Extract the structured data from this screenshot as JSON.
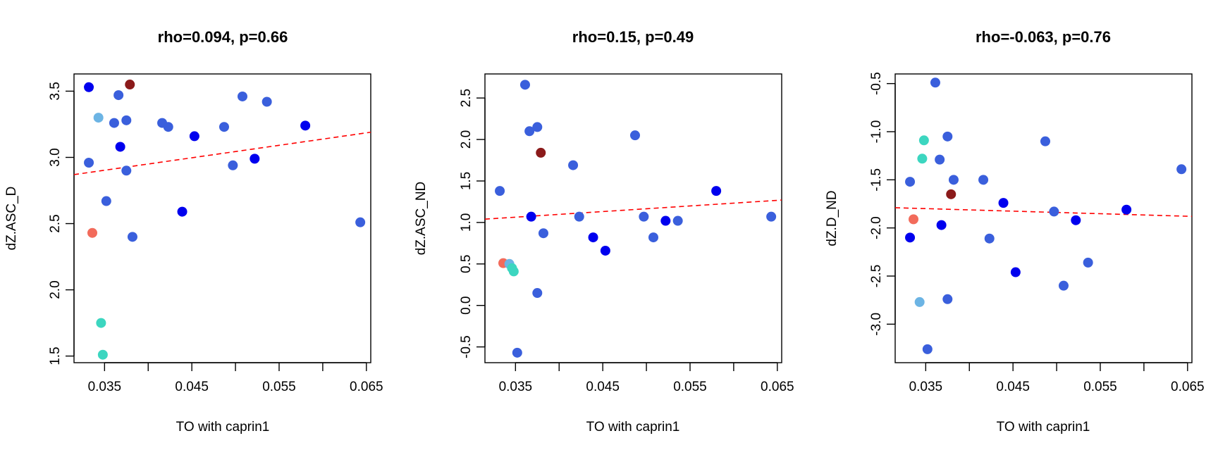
{
  "chart_data": [
    {
      "type": "scatter",
      "title": "rho=0.094, p=0.66",
      "xlabel": "TO with caprin1",
      "ylabel": "dZ.ASC_D",
      "xlim": [
        0.0315,
        0.0655
      ],
      "ylim": [
        1.45,
        3.63
      ],
      "xticks": [
        {
          "value": 0.035,
          "label": "0.035"
        },
        {
          "value": 0.04,
          "label": ""
        },
        {
          "value": 0.045,
          "label": "0.045"
        },
        {
          "value": 0.05,
          "label": ""
        },
        {
          "value": 0.055,
          "label": "0.055"
        },
        {
          "value": 0.06,
          "label": ""
        },
        {
          "value": 0.065,
          "label": "0.065"
        }
      ],
      "yticks": [
        {
          "value": 1.5,
          "label": "1.5"
        },
        {
          "value": 2.0,
          "label": "2.0"
        },
        {
          "value": 2.5,
          "label": "2.5"
        },
        {
          "value": 3.0,
          "label": "3.0"
        },
        {
          "value": 3.5,
          "label": "3.5"
        }
      ],
      "regression": {
        "x": [
          0.0315,
          0.0655
        ],
        "y": [
          2.87,
          3.19
        ],
        "color": "#ff0000",
        "style": "dashed"
      },
      "points": [
        {
          "x": 0.0332,
          "y": 3.53,
          "color": "#0000ee"
        },
        {
          "x": 0.0379,
          "y": 3.55,
          "color": "#8b1a1a"
        },
        {
          "x": 0.0343,
          "y": 3.3,
          "color": "#6cb4e4"
        },
        {
          "x": 0.0366,
          "y": 3.47,
          "color": "#3a5fdc"
        },
        {
          "x": 0.0361,
          "y": 3.26,
          "color": "#3a5fdc"
        },
        {
          "x": 0.0375,
          "y": 3.28,
          "color": "#3a5fdc"
        },
        {
          "x": 0.0368,
          "y": 3.08,
          "color": "#0000ee"
        },
        {
          "x": 0.0332,
          "y": 2.96,
          "color": "#3a5fdc"
        },
        {
          "x": 0.0375,
          "y": 2.9,
          "color": "#3a5fdc"
        },
        {
          "x": 0.0352,
          "y": 2.67,
          "color": "#3a5fdc"
        },
        {
          "x": 0.0336,
          "y": 2.43,
          "color": "#f26b5b"
        },
        {
          "x": 0.0382,
          "y": 2.4,
          "color": "#3a5fdc"
        },
        {
          "x": 0.0416,
          "y": 3.26,
          "color": "#3a5fdc"
        },
        {
          "x": 0.0423,
          "y": 3.23,
          "color": "#3a5fdc"
        },
        {
          "x": 0.0439,
          "y": 2.59,
          "color": "#0000ee"
        },
        {
          "x": 0.0453,
          "y": 3.16,
          "color": "#0000ee"
        },
        {
          "x": 0.0487,
          "y": 3.23,
          "color": "#3a5fdc"
        },
        {
          "x": 0.0497,
          "y": 2.94,
          "color": "#3a5fdc"
        },
        {
          "x": 0.0508,
          "y": 3.46,
          "color": "#3a5fdc"
        },
        {
          "x": 0.0522,
          "y": 2.99,
          "color": "#0000ee"
        },
        {
          "x": 0.0536,
          "y": 3.42,
          "color": "#3a5fdc"
        },
        {
          "x": 0.058,
          "y": 3.24,
          "color": "#0000ee"
        },
        {
          "x": 0.0643,
          "y": 2.51,
          "color": "#3a5fdc"
        },
        {
          "x": 0.0346,
          "y": 1.75,
          "color": "#3cd6c0"
        },
        {
          "x": 0.0348,
          "y": 1.51,
          "color": "#3cd6c0"
        }
      ]
    },
    {
      "type": "scatter",
      "title": "rho=0.15, p=0.49",
      "xlabel": "TO with caprin1",
      "ylabel": "dZ.ASC_ND",
      "xlim": [
        0.0315,
        0.0655
      ],
      "ylim": [
        -0.69,
        2.79
      ],
      "xticks": [
        {
          "value": 0.035,
          "label": "0.035"
        },
        {
          "value": 0.04,
          "label": ""
        },
        {
          "value": 0.045,
          "label": "0.045"
        },
        {
          "value": 0.05,
          "label": ""
        },
        {
          "value": 0.055,
          "label": "0.055"
        },
        {
          "value": 0.06,
          "label": ""
        },
        {
          "value": 0.065,
          "label": "0.065"
        }
      ],
      "yticks": [
        {
          "value": -0.5,
          "label": "-0.5"
        },
        {
          "value": 0.0,
          "label": "0.0"
        },
        {
          "value": 0.5,
          "label": "0.5"
        },
        {
          "value": 1.0,
          "label": "1.0"
        },
        {
          "value": 1.5,
          "label": "1.5"
        },
        {
          "value": 2.0,
          "label": "2.0"
        },
        {
          "value": 2.5,
          "label": "2.5"
        }
      ],
      "regression": {
        "x": [
          0.0315,
          0.0655
        ],
        "y": [
          1.04,
          1.27
        ],
        "color": "#ff0000",
        "style": "dashed"
      },
      "points": [
        {
          "x": 0.0361,
          "y": 2.66,
          "color": "#3a5fdc"
        },
        {
          "x": 0.0375,
          "y": 2.15,
          "color": "#3a5fdc"
        },
        {
          "x": 0.0366,
          "y": 2.1,
          "color": "#3a5fdc"
        },
        {
          "x": 0.0379,
          "y": 1.84,
          "color": "#8b1a1a"
        },
        {
          "x": 0.0332,
          "y": 1.38,
          "color": "#3a5fdc"
        },
        {
          "x": 0.0368,
          "y": 1.07,
          "color": "#0000ee"
        },
        {
          "x": 0.0382,
          "y": 0.87,
          "color": "#3a5fdc"
        },
        {
          "x": 0.0336,
          "y": 0.51,
          "color": "#f26b5b"
        },
        {
          "x": 0.0343,
          "y": 0.5,
          "color": "#6cb4e4"
        },
        {
          "x": 0.0346,
          "y": 0.45,
          "color": "#3cd6c0"
        },
        {
          "x": 0.0348,
          "y": 0.41,
          "color": "#3cd6c0"
        },
        {
          "x": 0.0375,
          "y": 0.15,
          "color": "#3a5fdc"
        },
        {
          "x": 0.0352,
          "y": -0.57,
          "color": "#3a5fdc"
        },
        {
          "x": 0.0416,
          "y": 1.69,
          "color": "#3a5fdc"
        },
        {
          "x": 0.0423,
          "y": 1.07,
          "color": "#3a5fdc"
        },
        {
          "x": 0.0439,
          "y": 0.82,
          "color": "#0000ee"
        },
        {
          "x": 0.0453,
          "y": 0.66,
          "color": "#0000ee"
        },
        {
          "x": 0.0487,
          "y": 2.05,
          "color": "#3a5fdc"
        },
        {
          "x": 0.0497,
          "y": 1.07,
          "color": "#3a5fdc"
        },
        {
          "x": 0.0508,
          "y": 0.82,
          "color": "#3a5fdc"
        },
        {
          "x": 0.0522,
          "y": 1.02,
          "color": "#0000ee"
        },
        {
          "x": 0.0536,
          "y": 1.02,
          "color": "#3a5fdc"
        },
        {
          "x": 0.058,
          "y": 1.38,
          "color": "#0000ee"
        },
        {
          "x": 0.0643,
          "y": 1.07,
          "color": "#3a5fdc"
        }
      ]
    },
    {
      "type": "scatter",
      "title": "rho=-0.063, p=0.76",
      "xlabel": "TO with caprin1",
      "ylabel": "dZ.D_ND",
      "xlim": [
        0.0315,
        0.0655
      ],
      "ylim": [
        -3.4,
        -0.4
      ],
      "xticks": [
        {
          "value": 0.035,
          "label": "0.035"
        },
        {
          "value": 0.04,
          "label": ""
        },
        {
          "value": 0.045,
          "label": "0.045"
        },
        {
          "value": 0.05,
          "label": ""
        },
        {
          "value": 0.055,
          "label": "0.055"
        },
        {
          "value": 0.06,
          "label": ""
        },
        {
          "value": 0.065,
          "label": "0.065"
        }
      ],
      "yticks": [
        {
          "value": -3.0,
          "label": "-3.0"
        },
        {
          "value": -2.5,
          "label": "-2.5"
        },
        {
          "value": -2.0,
          "label": "-2.0"
        },
        {
          "value": -1.5,
          "label": "-1.5"
        },
        {
          "value": -1.0,
          "label": "-1.0"
        },
        {
          "value": -0.5,
          "label": "-0.5"
        }
      ],
      "regression": {
        "x": [
          0.0315,
          0.0655
        ],
        "y": [
          -1.79,
          -1.88
        ],
        "color": "#ff0000",
        "style": "dashed"
      },
      "points": [
        {
          "x": 0.0361,
          "y": -0.49,
          "color": "#3a5fdc"
        },
        {
          "x": 0.0348,
          "y": -1.09,
          "color": "#3cd6c0"
        },
        {
          "x": 0.0375,
          "y": -1.05,
          "color": "#3a5fdc"
        },
        {
          "x": 0.0346,
          "y": -1.28,
          "color": "#3cd6c0"
        },
        {
          "x": 0.0366,
          "y": -1.29,
          "color": "#3a5fdc"
        },
        {
          "x": 0.0332,
          "y": -1.52,
          "color": "#3a5fdc"
        },
        {
          "x": 0.0382,
          "y": -1.5,
          "color": "#3a5fdc"
        },
        {
          "x": 0.0379,
          "y": -1.65,
          "color": "#8b1a1a"
        },
        {
          "x": 0.0336,
          "y": -1.91,
          "color": "#f26b5b"
        },
        {
          "x": 0.0368,
          "y": -1.97,
          "color": "#0000ee"
        },
        {
          "x": 0.0332,
          "y": -2.1,
          "color": "#0000ee"
        },
        {
          "x": 0.0343,
          "y": -2.77,
          "color": "#6cb4e4"
        },
        {
          "x": 0.0375,
          "y": -2.74,
          "color": "#3a5fdc"
        },
        {
          "x": 0.0352,
          "y": -3.26,
          "color": "#3a5fdc"
        },
        {
          "x": 0.0416,
          "y": -1.5,
          "color": "#3a5fdc"
        },
        {
          "x": 0.0423,
          "y": -2.11,
          "color": "#3a5fdc"
        },
        {
          "x": 0.0439,
          "y": -1.74,
          "color": "#0000ee"
        },
        {
          "x": 0.0453,
          "y": -2.46,
          "color": "#0000ee"
        },
        {
          "x": 0.0487,
          "y": -1.1,
          "color": "#3a5fdc"
        },
        {
          "x": 0.0497,
          "y": -1.83,
          "color": "#3a5fdc"
        },
        {
          "x": 0.0508,
          "y": -2.6,
          "color": "#3a5fdc"
        },
        {
          "x": 0.0522,
          "y": -1.92,
          "color": "#0000ee"
        },
        {
          "x": 0.0536,
          "y": -2.36,
          "color": "#3a5fdc"
        },
        {
          "x": 0.058,
          "y": -1.81,
          "color": "#0000ee"
        },
        {
          "x": 0.0643,
          "y": -1.39,
          "color": "#3a5fdc"
        }
      ]
    }
  ]
}
